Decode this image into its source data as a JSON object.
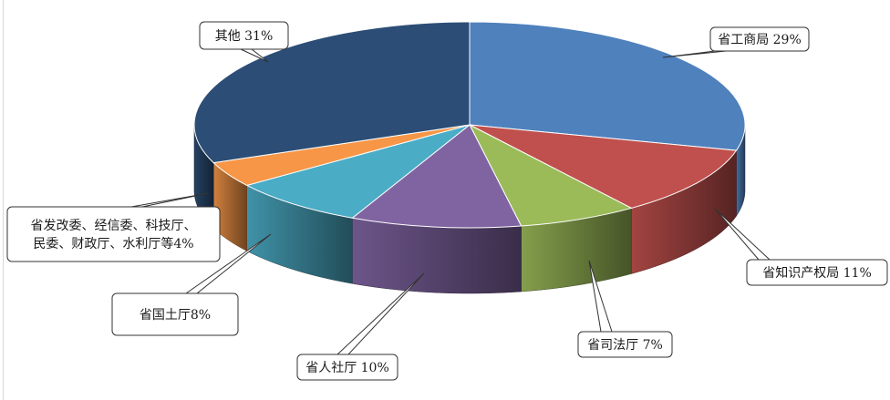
{
  "chart_data": {
    "type": "pie",
    "title": "",
    "slices": [
      {
        "name": "省工商局",
        "value": 29,
        "label": "省工商局 29%",
        "color": "#4f81bd"
      },
      {
        "name": "省知识产权局",
        "value": 11,
        "label": "省知识产权局 11%",
        "color": "#c0504d"
      },
      {
        "name": "省司法厅",
        "value": 7,
        "label": "省司法厅 7%",
        "color": "#9bbb59"
      },
      {
        "name": "省人社厅",
        "value": 10,
        "label": "省人社厅 10%",
        "color": "#8064a2"
      },
      {
        "name": "省国土厅",
        "value": 8,
        "label": "省国土厅8%",
        "color": "#4bacc6"
      },
      {
        "name": "省发改委等",
        "value": 4,
        "label_lines": [
          "省发改委、经信委、科技厅、",
          "民委、财政厅、水利厅等4%"
        ],
        "color": "#f79646"
      },
      {
        "name": "其他",
        "value": 31,
        "label": "其他 31%",
        "color": "#2c4d75"
      }
    ],
    "style": "3d",
    "legend": "none"
  }
}
